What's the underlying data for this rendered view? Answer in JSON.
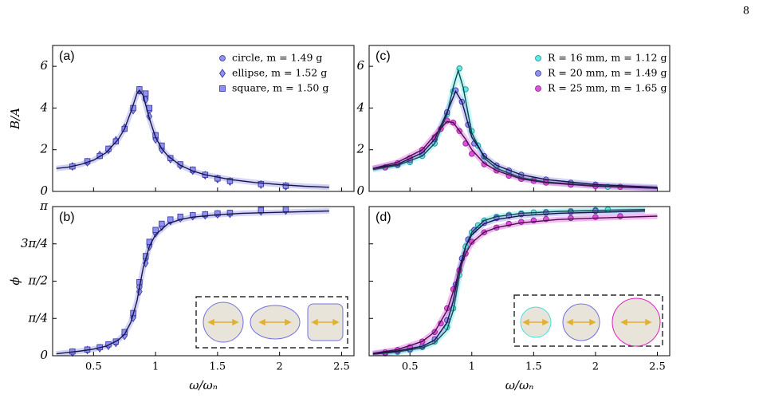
{
  "page_number": "8",
  "chart_data": [
    {
      "type": "scatter",
      "label": "(a)",
      "ylabel": "B/A",
      "show_xtick_labels": false,
      "legend": "upper right",
      "xlim": [
        0.17,
        2.6
      ],
      "xticks": [
        0.5,
        1,
        1.5,
        2,
        2.5
      ],
      "ylim": [
        0,
        7
      ],
      "yticks": [
        0,
        2,
        4,
        6
      ],
      "series": [
        {
          "name": "circle, m = 1.49 g",
          "marker": "circle",
          "color": "#9090ee",
          "edge": "#3030a0",
          "x": [
            0.33,
            0.45,
            0.55,
            0.62,
            0.68,
            0.75,
            0.82,
            0.87,
            0.92,
            0.95,
            1.0,
            1.05,
            1.12,
            1.2,
            1.3,
            1.4,
            1.5,
            1.6,
            1.85,
            2.05
          ],
          "values": [
            1.2,
            1.4,
            1.7,
            2.0,
            2.4,
            3.0,
            4.0,
            4.8,
            4.5,
            3.9,
            2.6,
            2.1,
            1.6,
            1.3,
            1.0,
            0.8,
            0.6,
            0.5,
            0.35,
            0.25
          ]
        },
        {
          "name": "ellipse, m = 1.52 g",
          "marker": "diamond",
          "color": "#9090ee",
          "edge": "#3030a0",
          "x": [
            0.33,
            0.45,
            0.55,
            0.62,
            0.68,
            0.75,
            0.82,
            0.87,
            0.92,
            0.95,
            1.0,
            1.05,
            1.12,
            1.2,
            1.3,
            1.4,
            1.5,
            1.6,
            1.85,
            2.05
          ],
          "values": [
            1.2,
            1.4,
            1.75,
            2.0,
            2.45,
            3.05,
            3.9,
            4.85,
            4.4,
            3.6,
            2.5,
            2.0,
            1.55,
            1.25,
            1.0,
            0.78,
            0.6,
            0.48,
            0.33,
            0.25
          ]
        },
        {
          "name": "square, m = 1.50 g",
          "marker": "square",
          "color": "#9090ee",
          "edge": "#3030a0",
          "x": [
            0.33,
            0.45,
            0.55,
            0.62,
            0.68,
            0.75,
            0.82,
            0.87,
            0.92,
            0.95,
            1.0,
            1.05,
            1.12,
            1.2,
            1.3,
            1.4,
            1.5,
            1.6,
            1.85,
            2.05
          ],
          "values": [
            1.2,
            1.45,
            1.7,
            2.05,
            2.4,
            3.0,
            4.0,
            4.9,
            4.7,
            4.0,
            2.7,
            2.2,
            1.6,
            1.3,
            1.05,
            0.8,
            0.62,
            0.5,
            0.35,
            0.27
          ]
        }
      ],
      "fits": [
        {
          "color": "#151545",
          "band_color": "#9090ee",
          "x": [
            0.2,
            0.3,
            0.4,
            0.5,
            0.6,
            0.7,
            0.75,
            0.8,
            0.85,
            0.87,
            0.9,
            0.95,
            1.0,
            1.05,
            1.1,
            1.2,
            1.3,
            1.4,
            1.6,
            1.8,
            2.0,
            2.2,
            2.4
          ],
          "values": [
            1.1,
            1.17,
            1.3,
            1.5,
            1.85,
            2.5,
            3.0,
            3.8,
            4.7,
            4.85,
            4.6,
            3.5,
            2.6,
            2.05,
            1.7,
            1.25,
            0.98,
            0.8,
            0.57,
            0.43,
            0.33,
            0.25,
            0.2
          ]
        }
      ]
    },
    {
      "type": "scatter",
      "label": "(b)",
      "ylabel": "ϕ",
      "xlabel": "ω/ωₙ",
      "show_xtick_labels": true,
      "xlim": [
        0.17,
        2.6
      ],
      "xticks": [
        0.5,
        1,
        1.5,
        2,
        2.5
      ],
      "ylim": [
        0,
        3.1416
      ],
      "yticks": [
        0,
        {
          "value": 0.7854,
          "label": "π/4"
        },
        {
          "value": 1.5708,
          "label": "π/2"
        },
        {
          "value": 2.3562,
          "label": "3π/4"
        },
        {
          "value": 3.1416,
          "label": "π"
        }
      ],
      "series": [
        {
          "marker": "circle",
          "color": "#9090ee",
          "edge": "#3030a0",
          "x": [
            0.33,
            0.45,
            0.55,
            0.62,
            0.68,
            0.75,
            0.82,
            0.87,
            0.92,
            0.95,
            1.0,
            1.05,
            1.12,
            1.2,
            1.3,
            1.4,
            1.5,
            1.6,
            1.85,
            2.05
          ],
          "values": [
            0.08,
            0.12,
            0.17,
            0.22,
            0.28,
            0.45,
            0.85,
            1.45,
            2.05,
            2.35,
            2.6,
            2.75,
            2.85,
            2.9,
            2.95,
            2.97,
            2.98,
            3.0,
            3.06,
            3.08
          ]
        },
        {
          "marker": "diamond",
          "color": "#9090ee",
          "edge": "#3030a0",
          "x": [
            0.33,
            0.45,
            0.55,
            0.62,
            0.68,
            0.75,
            0.82,
            0.87,
            0.92,
            0.95,
            1.0,
            1.05,
            1.12,
            1.2,
            1.3,
            1.4,
            1.5,
            1.6,
            1.85,
            2.05
          ],
          "values": [
            0.07,
            0.12,
            0.16,
            0.21,
            0.27,
            0.42,
            0.8,
            1.35,
            1.95,
            2.3,
            2.58,
            2.72,
            2.84,
            2.9,
            2.94,
            2.96,
            2.98,
            2.99,
            3.04,
            3.06
          ]
        },
        {
          "marker": "square",
          "color": "#9090ee",
          "edge": "#3030a0",
          "x": [
            0.33,
            0.45,
            0.55,
            0.62,
            0.68,
            0.75,
            0.82,
            0.87,
            0.92,
            0.95,
            1.0,
            1.05,
            1.12,
            1.2,
            1.3,
            1.4,
            1.5,
            1.6,
            1.85,
            2.05
          ],
          "values": [
            0.09,
            0.13,
            0.18,
            0.24,
            0.3,
            0.5,
            0.9,
            1.55,
            2.1,
            2.4,
            2.65,
            2.78,
            2.87,
            2.93,
            2.96,
            2.98,
            3.0,
            3.01,
            3.07,
            3.09
          ]
        }
      ],
      "fits": [
        {
          "color": "#151545",
          "band_color": "#9090ee",
          "x": [
            0.2,
            0.3,
            0.4,
            0.5,
            0.6,
            0.7,
            0.75,
            0.8,
            0.85,
            0.88,
            0.9,
            0.95,
            1.0,
            1.1,
            1.2,
            1.3,
            1.5,
            1.7,
            2.0,
            2.4
          ],
          "values": [
            0.04,
            0.07,
            0.1,
            0.14,
            0.2,
            0.33,
            0.45,
            0.7,
            1.15,
            1.57,
            1.85,
            2.3,
            2.55,
            2.78,
            2.87,
            2.92,
            2.97,
            3.0,
            3.02,
            3.05
          ]
        }
      ]
    },
    {
      "type": "scatter",
      "label": "(c)",
      "show_xtick_labels": false,
      "legend": "upper right",
      "xlim": [
        0.17,
        2.6
      ],
      "xticks": [
        0.5,
        1,
        1.5,
        2,
        2.5
      ],
      "ylim": [
        0,
        7
      ],
      "yticks": [
        0,
        2,
        4,
        6
      ],
      "series": [
        {
          "name": "R = 16 mm,  m = 1.12 g",
          "marker": "circle",
          "color": "#60e8e8",
          "edge": "#208888",
          "x": [
            0.3,
            0.4,
            0.5,
            0.6,
            0.7,
            0.8,
            0.85,
            0.9,
            0.95,
            1.0,
            1.05,
            1.1,
            1.2,
            1.3,
            1.4,
            1.5,
            1.6,
            1.8,
            2.0,
            2.1
          ],
          "values": [
            1.15,
            1.25,
            1.4,
            1.7,
            2.3,
            3.7,
            4.8,
            5.9,
            4.9,
            2.9,
            2.2,
            1.65,
            1.1,
            0.85,
            0.68,
            0.55,
            0.45,
            0.33,
            0.28,
            0.22
          ]
        },
        {
          "name": "R = 20 mm,  m = 1.49 g",
          "marker": "circle",
          "color": "#9090ee",
          "edge": "#3030a0",
          "x": [
            0.3,
            0.4,
            0.5,
            0.6,
            0.7,
            0.8,
            0.87,
            0.92,
            0.97,
            1.02,
            1.1,
            1.2,
            1.3,
            1.4,
            1.6,
            1.8,
            2.0
          ],
          "values": [
            1.15,
            1.3,
            1.5,
            1.85,
            2.5,
            3.8,
            4.85,
            4.3,
            3.2,
            2.3,
            1.7,
            1.25,
            1.0,
            0.8,
            0.57,
            0.42,
            0.33
          ]
        },
        {
          "name": "R = 25 mm,  m = 1.65 g",
          "marker": "circle",
          "color": "#e050e0",
          "edge": "#802080",
          "x": [
            0.3,
            0.4,
            0.5,
            0.6,
            0.7,
            0.75,
            0.8,
            0.85,
            0.9,
            0.95,
            1.0,
            1.1,
            1.2,
            1.3,
            1.4,
            1.5,
            1.6,
            1.8,
            2.0,
            2.2
          ],
          "values": [
            1.15,
            1.35,
            1.6,
            2.0,
            2.6,
            3.0,
            3.4,
            3.3,
            2.9,
            2.3,
            1.8,
            1.3,
            1.0,
            0.75,
            0.6,
            0.5,
            0.42,
            0.32,
            0.26,
            0.22
          ]
        }
      ],
      "fits": [
        {
          "color": "#0d4a4a",
          "band_color": "#60e8e8",
          "x": [
            0.2,
            0.4,
            0.6,
            0.7,
            0.8,
            0.85,
            0.89,
            0.93,
            1.0,
            1.1,
            1.2,
            1.4,
            1.6,
            2.0,
            2.5
          ],
          "values": [
            1.05,
            1.25,
            1.7,
            2.3,
            3.7,
            5.0,
            5.8,
            5.0,
            2.8,
            1.6,
            1.1,
            0.65,
            0.45,
            0.27,
            0.15
          ]
        },
        {
          "color": "#151545",
          "band_color": "#9090ee",
          "x": [
            0.2,
            0.4,
            0.6,
            0.7,
            0.8,
            0.87,
            0.92,
            1.0,
            1.1,
            1.2,
            1.4,
            1.6,
            2.0,
            2.5
          ],
          "values": [
            1.1,
            1.3,
            1.85,
            2.5,
            3.8,
            4.8,
            4.3,
            2.6,
            1.7,
            1.25,
            0.8,
            0.57,
            0.33,
            0.2
          ]
        },
        {
          "color": "#4a0d4a",
          "band_color": "#e050e0",
          "x": [
            0.2,
            0.4,
            0.6,
            0.7,
            0.8,
            0.85,
            0.95,
            1.0,
            1.1,
            1.2,
            1.4,
            1.6,
            2.0,
            2.5
          ],
          "values": [
            1.1,
            1.4,
            2.0,
            2.7,
            3.35,
            3.3,
            2.5,
            2.0,
            1.35,
            1.0,
            0.6,
            0.42,
            0.25,
            0.15
          ]
        }
      ]
    },
    {
      "type": "scatter",
      "label": "(d)",
      "xlabel": "ω/ωₙ",
      "show_xtick_labels": true,
      "xlim": [
        0.17,
        2.6
      ],
      "xticks": [
        0.5,
        1,
        1.5,
        2,
        2.5
      ],
      "ylim": [
        0,
        3.1416
      ],
      "yticks": [
        0,
        0.7854,
        1.5708,
        2.3562,
        3.1416
      ],
      "show_ytick_labels": false,
      "series": [
        {
          "marker": "circle",
          "color": "#60e8e8",
          "edge": "#208888",
          "x": [
            0.3,
            0.4,
            0.5,
            0.6,
            0.7,
            0.8,
            0.85,
            0.9,
            0.95,
            1.0,
            1.05,
            1.1,
            1.2,
            1.3,
            1.4,
            1.5,
            1.6,
            1.8,
            2.0,
            2.1
          ],
          "values": [
            0.05,
            0.08,
            0.12,
            0.18,
            0.3,
            0.6,
            1.0,
            1.7,
            2.3,
            2.6,
            2.75,
            2.85,
            2.93,
            2.97,
            3.0,
            3.02,
            3.03,
            3.05,
            3.07,
            3.08
          ]
        },
        {
          "marker": "circle",
          "color": "#9090ee",
          "edge": "#3030a0",
          "x": [
            0.3,
            0.4,
            0.5,
            0.6,
            0.7,
            0.8,
            0.87,
            0.92,
            0.97,
            1.02,
            1.1,
            1.2,
            1.3,
            1.4,
            1.6,
            1.8,
            2.0
          ],
          "values": [
            0.06,
            0.1,
            0.14,
            0.2,
            0.35,
            0.75,
            1.5,
            2.05,
            2.45,
            2.65,
            2.8,
            2.9,
            2.95,
            2.98,
            3.01,
            3.03,
            3.05
          ]
        },
        {
          "marker": "circle",
          "color": "#e050e0",
          "edge": "#802080",
          "x": [
            0.3,
            0.4,
            0.5,
            0.6,
            0.7,
            0.75,
            0.8,
            0.85,
            0.9,
            0.95,
            1.0,
            1.1,
            1.2,
            1.3,
            1.4,
            1.5,
            1.6,
            1.8,
            2.0,
            2.2
          ],
          "values": [
            0.07,
            0.12,
            0.18,
            0.3,
            0.5,
            0.68,
            1.0,
            1.4,
            1.8,
            2.15,
            2.4,
            2.6,
            2.7,
            2.78,
            2.82,
            2.85,
            2.88,
            2.9,
            2.92,
            2.94
          ]
        }
      ],
      "fits": [
        {
          "color": "#0d4a4a",
          "band_color": "#60e8e8",
          "x": [
            0.2,
            0.4,
            0.6,
            0.7,
            0.8,
            0.85,
            0.9,
            0.95,
            1.0,
            1.1,
            1.2,
            1.4,
            1.7,
            2.0,
            2.4
          ],
          "values": [
            0.03,
            0.08,
            0.17,
            0.27,
            0.55,
            0.95,
            1.7,
            2.3,
            2.6,
            2.85,
            2.93,
            3.0,
            3.04,
            3.06,
            3.08
          ]
        },
        {
          "color": "#151545",
          "band_color": "#9090ee",
          "x": [
            0.2,
            0.4,
            0.6,
            0.7,
            0.8,
            0.85,
            0.88,
            0.9,
            0.95,
            1.0,
            1.1,
            1.2,
            1.4,
            1.7,
            2.0,
            2.4
          ],
          "values": [
            0.04,
            0.1,
            0.2,
            0.33,
            0.7,
            1.15,
            1.57,
            1.85,
            2.3,
            2.55,
            2.78,
            2.87,
            2.95,
            3.0,
            3.02,
            3.05
          ]
        },
        {
          "color": "#4a0d4a",
          "band_color": "#e050e0",
          "x": [
            0.2,
            0.4,
            0.6,
            0.7,
            0.8,
            0.85,
            0.9,
            0.95,
            1.0,
            1.1,
            1.2,
            1.4,
            1.7,
            2.0,
            2.5
          ],
          "values": [
            0.05,
            0.13,
            0.3,
            0.5,
            0.95,
            1.35,
            1.8,
            2.15,
            2.38,
            2.6,
            2.7,
            2.8,
            2.87,
            2.9,
            2.94
          ]
        }
      ]
    }
  ]
}
